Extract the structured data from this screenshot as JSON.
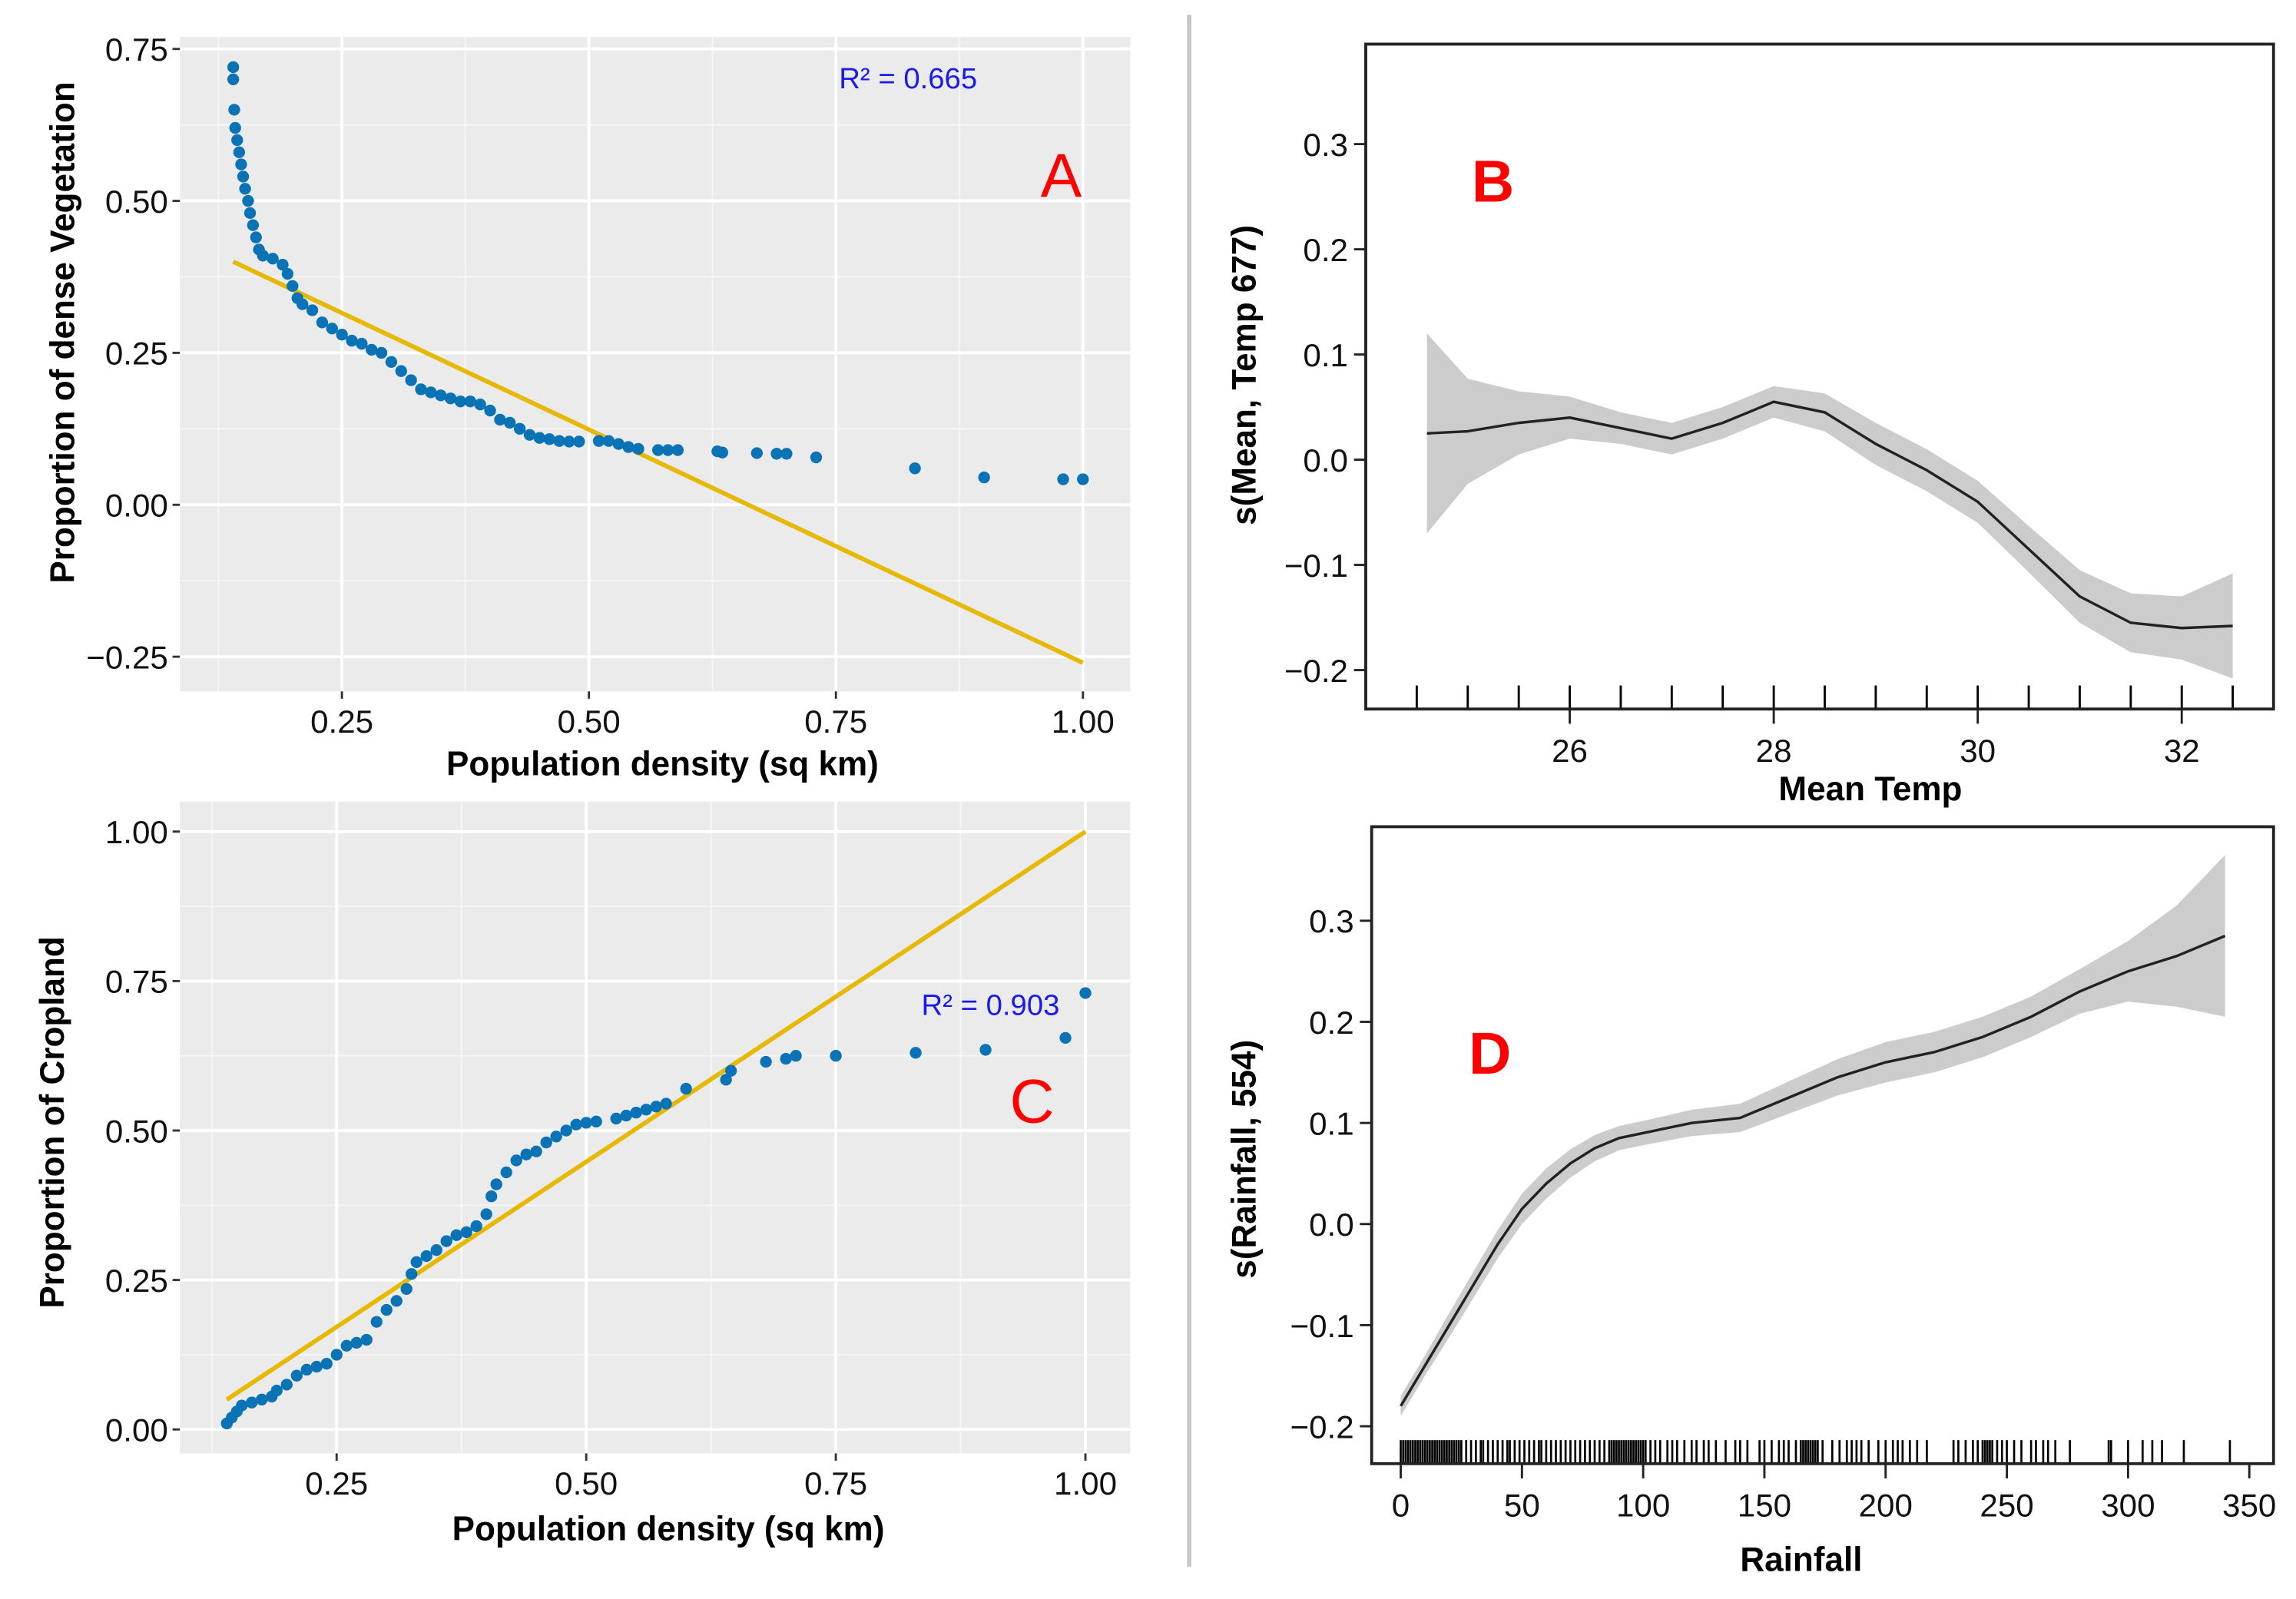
{
  "colors": {
    "point": "#0a73b5",
    "fit_line": "#e6b800",
    "panel_bg": "#ebebeb",
    "ribbon": "#cccccc",
    "panel_label": "#ff0000",
    "r2_text": "#1a1aee"
  },
  "chart_data": [
    {
      "id": "A",
      "type": "scatter",
      "panel_label": "A",
      "xlabel": "Population density (sq km)",
      "ylabel": "Proportion of dense Vegetation",
      "annotation": "R² = 0.665",
      "xlim": [
        0.086,
        1.048
      ],
      "ylim": [
        -0.307,
        0.77
      ],
      "xticks": [
        0.25,
        0.5,
        0.75,
        1.0
      ],
      "xtick_labels": [
        "0.25",
        "0.50",
        "0.75",
        "1.00"
      ],
      "yticks": [
        0.75,
        0.5,
        0.25,
        0.0,
        -0.25
      ],
      "ytick_labels": [
        "0.75",
        "0.50",
        "0.25",
        "0.00",
        "−0.25"
      ],
      "grid": true,
      "fit_line": [
        [
          0.14,
          0.4
        ],
        [
          1.0,
          -0.26
        ]
      ],
      "points": [
        [
          0.14,
          0.72
        ],
        [
          0.14,
          0.7
        ],
        [
          0.141,
          0.65
        ],
        [
          0.142,
          0.62
        ],
        [
          0.144,
          0.6
        ],
        [
          0.146,
          0.58
        ],
        [
          0.148,
          0.56
        ],
        [
          0.15,
          0.54
        ],
        [
          0.152,
          0.52
        ],
        [
          0.155,
          0.5
        ],
        [
          0.157,
          0.48
        ],
        [
          0.16,
          0.46
        ],
        [
          0.163,
          0.44
        ],
        [
          0.166,
          0.42
        ],
        [
          0.17,
          0.41
        ],
        [
          0.18,
          0.405
        ],
        [
          0.19,
          0.395
        ],
        [
          0.195,
          0.38
        ],
        [
          0.2,
          0.36
        ],
        [
          0.205,
          0.34
        ],
        [
          0.21,
          0.33
        ],
        [
          0.22,
          0.32
        ],
        [
          0.23,
          0.3
        ],
        [
          0.24,
          0.29
        ],
        [
          0.25,
          0.28
        ],
        [
          0.26,
          0.27
        ],
        [
          0.27,
          0.265
        ],
        [
          0.28,
          0.255
        ],
        [
          0.29,
          0.25
        ],
        [
          0.3,
          0.235
        ],
        [
          0.31,
          0.22
        ],
        [
          0.32,
          0.205
        ],
        [
          0.33,
          0.19
        ],
        [
          0.34,
          0.185
        ],
        [
          0.35,
          0.18
        ],
        [
          0.36,
          0.175
        ],
        [
          0.37,
          0.17
        ],
        [
          0.38,
          0.17
        ],
        [
          0.39,
          0.165
        ],
        [
          0.4,
          0.155
        ],
        [
          0.41,
          0.14
        ],
        [
          0.42,
          0.135
        ],
        [
          0.43,
          0.125
        ],
        [
          0.44,
          0.115
        ],
        [
          0.45,
          0.11
        ],
        [
          0.46,
          0.108
        ],
        [
          0.47,
          0.105
        ],
        [
          0.48,
          0.104
        ],
        [
          0.49,
          0.104
        ],
        [
          0.51,
          0.105
        ],
        [
          0.52,
          0.105
        ],
        [
          0.53,
          0.1
        ],
        [
          0.54,
          0.095
        ],
        [
          0.55,
          0.092
        ],
        [
          0.57,
          0.09
        ],
        [
          0.58,
          0.09
        ],
        [
          0.59,
          0.09
        ],
        [
          0.63,
          0.088
        ],
        [
          0.635,
          0.086
        ],
        [
          0.67,
          0.085
        ],
        [
          0.69,
          0.084
        ],
        [
          0.7,
          0.084
        ],
        [
          0.73,
          0.078
        ],
        [
          0.83,
          0.06
        ],
        [
          0.9,
          0.045
        ],
        [
          0.98,
          0.042
        ],
        [
          1.0,
          0.042
        ]
      ]
    },
    {
      "id": "B",
      "type": "line",
      "panel_label": "B",
      "xlabel": "Mean Temp",
      "ylabel": "s(Mean, Temp 677)",
      "xlim": [
        24.0,
        32.9
      ],
      "ylim": [
        -0.237,
        0.395
      ],
      "xticks": [
        26,
        28,
        30,
        32
      ],
      "xtick_labels": [
        "26",
        "28",
        "30",
        "32"
      ],
      "yticks": [
        0.3,
        0.2,
        0.1,
        0.0,
        -0.1,
        -0.2
      ],
      "ytick_labels": [
        "0.3",
        "0.2",
        "0.1",
        "0.0",
        "−0.1",
        "−0.2"
      ],
      "grid": false,
      "x": [
        24.6,
        25,
        25.5,
        26,
        26.5,
        27,
        27.5,
        28,
        28.5,
        29,
        29.5,
        30,
        30.5,
        31,
        31.5,
        32,
        32.5
      ],
      "y": [
        0.025,
        0.027,
        0.035,
        0.04,
        0.03,
        0.02,
        0.035,
        0.055,
        0.045,
        0.015,
        -0.01,
        -0.04,
        -0.085,
        -0.13,
        -0.155,
        -0.16,
        -0.158
      ],
      "se": [
        0.095,
        0.05,
        0.03,
        0.02,
        0.015,
        0.015,
        0.015,
        0.015,
        0.018,
        0.02,
        0.02,
        0.02,
        0.022,
        0.025,
        0.028,
        0.03,
        0.05
      ],
      "rug": [
        24.5,
        25,
        25.5,
        26,
        26.5,
        27,
        27.5,
        28,
        28.5,
        29,
        29.5,
        30,
        30.5,
        31,
        31.5,
        32,
        32.5
      ]
    },
    {
      "id": "C",
      "type": "scatter",
      "panel_label": "C",
      "xlabel": "Population density (sq km)",
      "ylabel": "Proportion of Cropland",
      "annotation": "R² = 0.903",
      "xlim": [
        0.093,
        1.045
      ],
      "ylim": [
        -0.04,
        1.05
      ],
      "xticks": [
        0.25,
        0.5,
        0.75,
        1.0
      ],
      "xtick_labels": [
        "0.25",
        "0.50",
        "0.75",
        "1.00"
      ],
      "yticks": [
        1.0,
        0.75,
        0.5,
        0.25,
        0.0
      ],
      "ytick_labels": [
        "1.00",
        "0.75",
        "0.50",
        "0.25",
        "0.00"
      ],
      "grid": true,
      "fit_line": [
        [
          0.14,
          0.05
        ],
        [
          1.0,
          1.0
        ]
      ],
      "points": [
        [
          0.14,
          0.01
        ],
        [
          0.145,
          0.02
        ],
        [
          0.15,
          0.03
        ],
        [
          0.155,
          0.04
        ],
        [
          0.165,
          0.045
        ],
        [
          0.175,
          0.05
        ],
        [
          0.185,
          0.055
        ],
        [
          0.19,
          0.065
        ],
        [
          0.2,
          0.075
        ],
        [
          0.21,
          0.09
        ],
        [
          0.22,
          0.1
        ],
        [
          0.23,
          0.105
        ],
        [
          0.24,
          0.11
        ],
        [
          0.25,
          0.125
        ],
        [
          0.26,
          0.14
        ],
        [
          0.27,
          0.145
        ],
        [
          0.28,
          0.15
        ],
        [
          0.29,
          0.18
        ],
        [
          0.3,
          0.2
        ],
        [
          0.31,
          0.215
        ],
        [
          0.32,
          0.235
        ],
        [
          0.325,
          0.26
        ],
        [
          0.33,
          0.28
        ],
        [
          0.34,
          0.29
        ],
        [
          0.35,
          0.3
        ],
        [
          0.36,
          0.315
        ],
        [
          0.37,
          0.325
        ],
        [
          0.38,
          0.33
        ],
        [
          0.39,
          0.34
        ],
        [
          0.4,
          0.36
        ],
        [
          0.405,
          0.39
        ],
        [
          0.41,
          0.41
        ],
        [
          0.42,
          0.43
        ],
        [
          0.43,
          0.45
        ],
        [
          0.44,
          0.46
        ],
        [
          0.45,
          0.465
        ],
        [
          0.46,
          0.48
        ],
        [
          0.47,
          0.49
        ],
        [
          0.48,
          0.5
        ],
        [
          0.49,
          0.51
        ],
        [
          0.5,
          0.513
        ],
        [
          0.51,
          0.515
        ],
        [
          0.53,
          0.52
        ],
        [
          0.54,
          0.525
        ],
        [
          0.55,
          0.53
        ],
        [
          0.56,
          0.535
        ],
        [
          0.57,
          0.54
        ],
        [
          0.58,
          0.545
        ],
        [
          0.6,
          0.57
        ],
        [
          0.64,
          0.585
        ],
        [
          0.645,
          0.6
        ],
        [
          0.68,
          0.615
        ],
        [
          0.7,
          0.62
        ],
        [
          0.71,
          0.625
        ],
        [
          0.75,
          0.625
        ],
        [
          0.83,
          0.63
        ],
        [
          0.9,
          0.635
        ],
        [
          0.98,
          0.655
        ],
        [
          1.0,
          0.73
        ]
      ]
    },
    {
      "id": "D",
      "type": "line",
      "panel_label": "D",
      "xlabel": "Rainfall",
      "ylabel": "s(Rainfall, 554)",
      "xlim": [
        -12,
        360
      ],
      "ylim": [
        -0.237,
        0.393
      ],
      "xticks": [
        0,
        50,
        100,
        150,
        200,
        250,
        300,
        350
      ],
      "xtick_labels": [
        "0",
        "50",
        "100",
        "150",
        "200",
        "250",
        "300",
        "350"
      ],
      "yticks": [
        0.3,
        0.2,
        0.1,
        0.0,
        -0.1,
        -0.2
      ],
      "ytick_labels": [
        "0.3",
        "0.2",
        "0.1",
        "0.0",
        "−0.1",
        "−0.2"
      ],
      "grid": false,
      "x": [
        0,
        10,
        20,
        30,
        40,
        50,
        60,
        70,
        80,
        90,
        100,
        120,
        140,
        160,
        180,
        200,
        220,
        240,
        260,
        280,
        300,
        320,
        340
      ],
      "y": [
        -0.18,
        -0.14,
        -0.1,
        -0.06,
        -0.02,
        0.015,
        0.04,
        0.06,
        0.075,
        0.085,
        0.09,
        0.1,
        0.105,
        0.125,
        0.145,
        0.16,
        0.17,
        0.185,
        0.205,
        0.23,
        0.25,
        0.265,
        0.285
      ],
      "se": [
        0.01,
        0.01,
        0.012,
        0.013,
        0.014,
        0.015,
        0.015,
        0.014,
        0.013,
        0.012,
        0.012,
        0.013,
        0.014,
        0.016,
        0.018,
        0.02,
        0.02,
        0.02,
        0.02,
        0.022,
        0.03,
        0.05,
        0.08
      ],
      "rug": [
        0,
        1,
        2,
        3,
        4,
        5,
        6,
        7,
        8,
        9,
        10,
        11,
        12,
        13,
        14,
        15,
        16,
        17,
        18,
        19,
        20,
        21,
        22,
        23,
        24,
        25,
        27,
        29,
        31,
        33,
        34,
        36,
        38,
        40,
        42,
        44,
        45,
        47,
        49,
        51,
        53,
        55,
        57,
        58,
        60,
        62,
        64,
        66,
        68,
        70,
        72,
        74,
        76,
        78,
        80,
        82,
        84,
        86,
        87,
        88,
        89,
        90,
        91,
        92,
        93,
        94,
        95,
        96,
        97,
        98,
        99,
        100,
        101,
        103,
        105,
        107,
        110,
        112,
        114,
        117,
        120,
        122,
        125,
        127,
        130,
        134,
        138,
        140,
        143,
        148,
        150,
        153,
        156,
        158,
        160,
        163,
        165,
        166,
        167,
        168,
        169,
        170,
        171,
        172,
        174,
        178,
        181,
        184,
        186,
        188,
        190,
        193,
        197,
        200,
        203,
        205,
        207,
        210,
        213,
        217,
        228,
        230,
        233,
        236,
        238,
        240,
        241,
        242,
        243,
        244,
        246,
        248,
        250,
        253,
        256,
        260,
        262,
        265,
        267,
        270,
        276,
        292,
        293,
        300,
        306,
        310,
        314,
        323,
        342
      ]
    }
  ]
}
